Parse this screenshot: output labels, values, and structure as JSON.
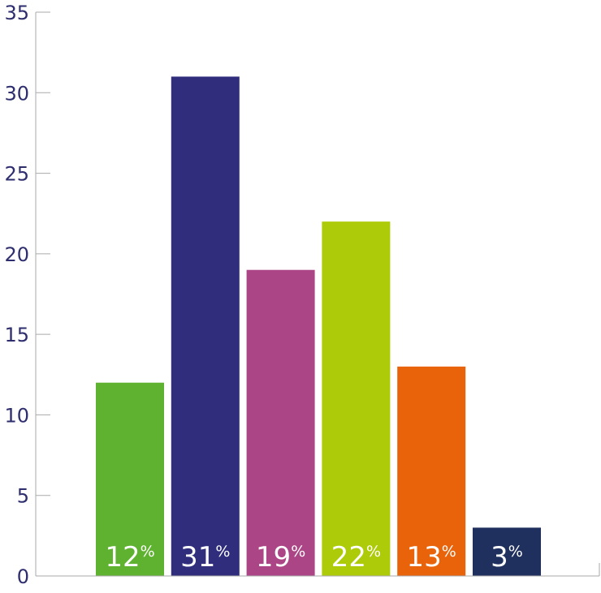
{
  "chart_data": {
    "type": "bar",
    "categories": [
      "",
      "",
      "",
      "",
      "",
      ""
    ],
    "values": [
      12,
      31,
      19,
      22,
      13,
      3
    ],
    "data_labels": [
      {
        "number": "12",
        "unit": "%"
      },
      {
        "number": "31",
        "unit": "%"
      },
      {
        "number": "19",
        "unit": "%"
      },
      {
        "number": "22",
        "unit": "%"
      },
      {
        "number": "13",
        "unit": "%"
      },
      {
        "number": "3",
        "unit": "%"
      }
    ],
    "colors": [
      "#5fb130",
      "#2f2d7c",
      "#ab4585",
      "#aecb0a",
      "#e8630a",
      "#20305e"
    ],
    "title": "",
    "xlabel": "",
    "ylabel": "",
    "ylim": [
      0,
      35
    ],
    "yticks": [
      "0",
      "5",
      "10",
      "15",
      "20",
      "25",
      "30",
      "35"
    ],
    "grid": false,
    "axis_color": "#aaaaaa"
  }
}
